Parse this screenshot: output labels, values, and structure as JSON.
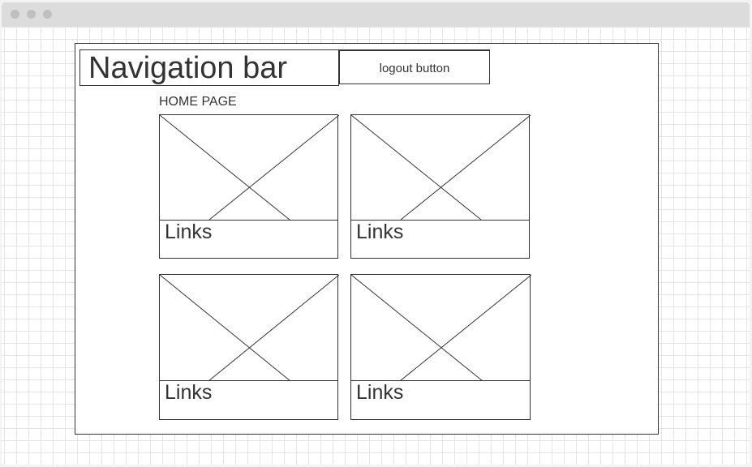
{
  "window": {
    "controls": [
      "close",
      "minimize",
      "maximize"
    ]
  },
  "wireframe": {
    "navbar": {
      "title": "Navigation bar"
    },
    "logout": {
      "label": "logout button"
    },
    "page_label": "HOME PAGE",
    "cards": [
      {
        "image": "placeholder-image",
        "link_label": "Links"
      },
      {
        "image": "placeholder-image",
        "link_label": "Links"
      },
      {
        "image": "placeholder-image",
        "link_label": "Links"
      },
      {
        "image": "placeholder-image",
        "link_label": "Links"
      }
    ]
  }
}
